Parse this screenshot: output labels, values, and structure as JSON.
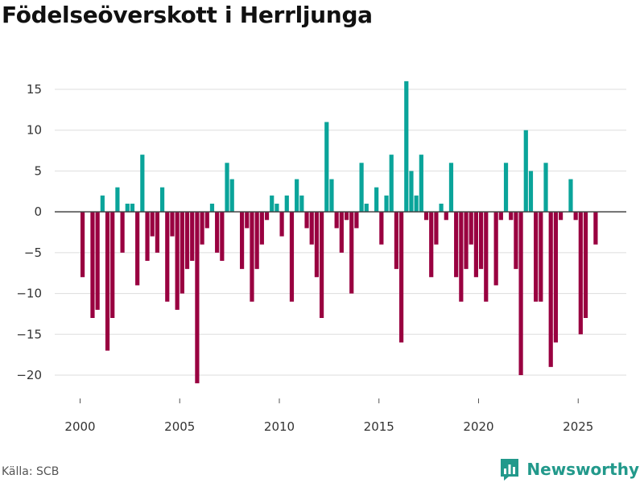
{
  "title": "Födelseöverskott i Herrljunga",
  "source": "Källa: SCB",
  "brand": "Newsworthy",
  "colors": {
    "positive": "#0aa49a",
    "negative": "#990040",
    "grid": "#dddddd",
    "zero_line": "#444444",
    "brand": "#22998b"
  },
  "chart_data": {
    "type": "bar",
    "title": "Födelseöverskott i Herrljunga",
    "xlabel": "",
    "ylabel": "",
    "frequency": "quarterly",
    "start": "2000 Q1",
    "x_ticks": [
      "2000",
      "2005",
      "2010",
      "2015",
      "2020",
      "2025"
    ],
    "y_ticks": [
      15,
      10,
      5,
      0,
      -5,
      -10,
      -15,
      -20
    ],
    "ylim": [
      -22,
      17
    ],
    "values": [
      -8,
      0,
      -13,
      -12,
      2,
      -17,
      -13,
      3,
      -5,
      1,
      1,
      -9,
      7,
      -6,
      -3,
      -5,
      3,
      -11,
      -3,
      -12,
      -10,
      -7,
      -6,
      -21,
      -4,
      -2,
      1,
      -5,
      -6,
      6,
      4,
      0,
      -7,
      -2,
      -11,
      -7,
      -4,
      -1,
      2,
      1,
      -3,
      2,
      -11,
      4,
      2,
      -2,
      -4,
      -8,
      -13,
      11,
      4,
      -2,
      -5,
      -1,
      -10,
      -2,
      6,
      1,
      0,
      3,
      -4,
      2,
      7,
      -7,
      -16,
      16,
      5,
      2,
      7,
      -1,
      -8,
      -4,
      1,
      -1,
      6,
      -8,
      -11,
      -7,
      -4,
      -8,
      -7,
      -11,
      0,
      -9,
      -1,
      6,
      -1,
      -7,
      -20,
      10,
      5,
      -11,
      -11,
      6,
      -19,
      -16,
      -1,
      0,
      4,
      -1,
      -15,
      -13,
      0,
      -4
    ]
  }
}
